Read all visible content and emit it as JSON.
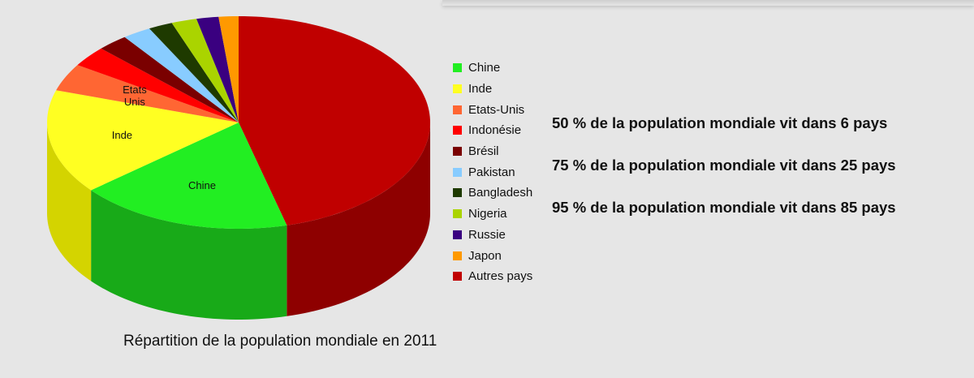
{
  "chart_data": {
    "type": "pie",
    "title": "",
    "caption": "Répartition de la population mondiale en 2011",
    "slices": [
      {
        "name": "Autres pays",
        "value": 49.4,
        "color": "#c00000",
        "side_color": "#8e0000"
      },
      {
        "name": "Chine",
        "value": 19.4,
        "color": "#22ee22",
        "side_color": "#18aa18"
      },
      {
        "name": "Inde",
        "value": 17.1,
        "color": "#ffff22",
        "side_color": "#d4d400",
        "label": "Inde"
      },
      {
        "name": "Etats-Unis",
        "value": 4.5,
        "color": "#ff6633",
        "side_color": "#c84a1e",
        "label": "Etats Unis"
      },
      {
        "name": "Indonésie",
        "value": 3.4,
        "color": "#ff0000",
        "side_color": "#c40000"
      },
      {
        "name": "Brésil",
        "value": 2.8,
        "color": "#7a0000",
        "side_color": "#5a0000"
      },
      {
        "name": "Pakistan",
        "value": 2.6,
        "color": "#88ccff",
        "side_color": "#5aa8dc"
      },
      {
        "name": "Bangladesh",
        "value": 2.2,
        "color": "#1e3a00",
        "side_color": "#142800"
      },
      {
        "name": "Nigeria",
        "value": 2.3,
        "color": "#aad400",
        "side_color": "#88a800"
      },
      {
        "name": "Russie",
        "value": 2.0,
        "color": "#3a0080",
        "side_color": "#2a0060"
      },
      {
        "name": "Japon",
        "value": 1.8,
        "color": "#ff9900",
        "side_color": "#cc7700"
      }
    ],
    "pie_labels": [
      {
        "slice": "Chine",
        "text": "Chine"
      },
      {
        "slice": "Inde",
        "text": "Inde"
      },
      {
        "slice": "Etats-Unis",
        "text": "Etats\nUnis"
      }
    ],
    "legend": {
      "placement": "right",
      "entries": [
        {
          "name": "Chine",
          "color": "#22ee22"
        },
        {
          "name": "Inde",
          "color": "#ffff22"
        },
        {
          "name": "Etats-Unis",
          "color": "#ff6633"
        },
        {
          "name": "Indonésie",
          "color": "#ff0000"
        },
        {
          "name": "Brésil",
          "color": "#7a0000"
        },
        {
          "name": "Pakistan",
          "color": "#88ccff"
        },
        {
          "name": "Bangladesh",
          "color": "#1e3a00"
        },
        {
          "name": "Nigeria",
          "color": "#aad400"
        },
        {
          "name": "Russie",
          "color": "#3a0080"
        },
        {
          "name": "Japon",
          "color": "#ff9900"
        },
        {
          "name": "Autres pays",
          "color": "#c00000"
        }
      ]
    },
    "annotations": [
      "50 % de la population mondiale vit dans 6 pays",
      "75 % de la population mondiale vit dans 25 pays",
      "95 % de la population mondiale vit dans 85 pays"
    ]
  }
}
